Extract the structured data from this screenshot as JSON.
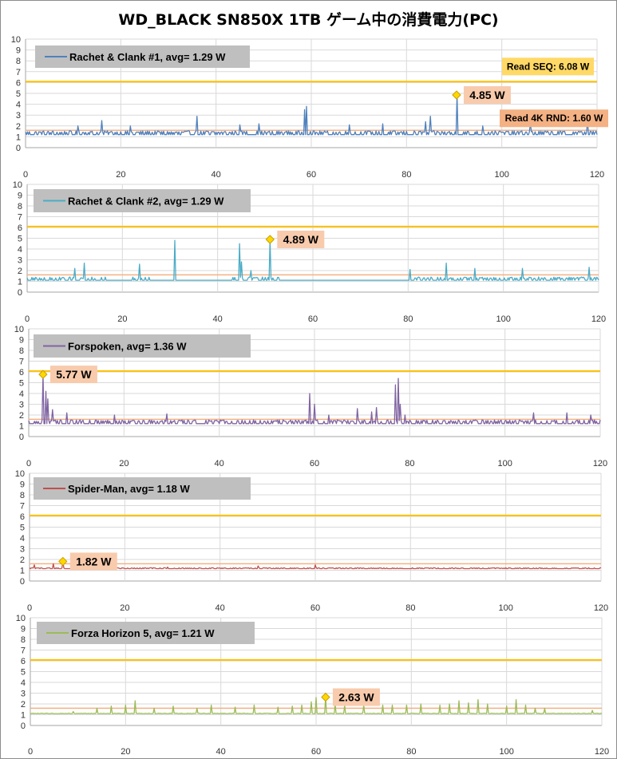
{
  "title": "WD_BLACK SN850X 1TB ゲーム中の消費電力(PC)",
  "colors": {
    "grid": "#d9d9d9",
    "axis": "#a6a6a6",
    "seq_line": "#ffc000",
    "rnd_line": "#f4b183",
    "legend_box": "#bfbfbf",
    "callout_box": "#f8cbad",
    "seq_box": "#ffd966",
    "rnd_box": "#f4b183",
    "marker_fill": "#ffd700",
    "marker_stroke": "#c9a000"
  },
  "reference_labels": {
    "seq": "Read SEQ:  6.08 W",
    "rnd": "Read 4K RND:  1.60 W"
  },
  "chart_data": [
    {
      "type": "line",
      "series": [
        {
          "name": "Rachet & Clank #1,  avg=  1.29 W",
          "color": "#4f81bd",
          "baseline": 1.2,
          "noise": 0.35,
          "spikes": [
            [
              11,
              2.0
            ],
            [
              16,
              2.5
            ],
            [
              22,
              2.0
            ],
            [
              36,
              2.9
            ],
            [
              45,
              2.1
            ],
            [
              49,
              2.2
            ],
            [
              58.5,
              3.5
            ],
            [
              59,
              3.8
            ],
            [
              68,
              2.1
            ],
            [
              75,
              2.2
            ],
            [
              84,
              2.4
            ],
            [
              85,
              2.9
            ],
            [
              90.5,
              4.85
            ],
            [
              96,
              2.0
            ],
            [
              106,
              2.3
            ],
            [
              118,
              2.6
            ]
          ],
          "peak": {
            "x": 90.5,
            "y": 4.85,
            "label": "4.85 W"
          }
        }
      ],
      "xlim": [
        0,
        120
      ],
      "ylim": [
        0,
        10
      ],
      "xticks": [
        0,
        20,
        40,
        60,
        80,
        100,
        120
      ],
      "yticks": [
        0,
        1,
        2,
        3,
        4,
        5,
        6,
        7,
        8,
        9,
        10
      ],
      "reference_lines": [
        6.08,
        1.6
      ],
      "show_reference_labels": true
    },
    {
      "type": "line",
      "series": [
        {
          "name": "Rachet & Clank #2,  avg=  1.29 W",
          "color": "#4bacc6",
          "baseline": 1.1,
          "noise": 0.3,
          "spikes": [
            [
              10,
              2.2
            ],
            [
              12,
              2.7
            ],
            [
              23.5,
              2.6
            ],
            [
              31,
              4.8
            ],
            [
              44.5,
              4.5
            ],
            [
              45,
              2.8
            ],
            [
              47,
              2.0
            ],
            [
              51,
              4.89
            ],
            [
              80.5,
              2.1
            ],
            [
              88,
              2.7
            ],
            [
              94,
              2.2
            ],
            [
              104,
              2.2
            ],
            [
              118,
              2.3
            ]
          ],
          "quiet": [
            [
              17,
              22
            ],
            [
              26,
              43
            ],
            [
              53,
              80
            ]
          ],
          "peak": {
            "x": 51,
            "y": 4.89,
            "label": "4.89 W"
          }
        }
      ],
      "xlim": [
        0,
        120
      ],
      "ylim": [
        0,
        10
      ],
      "xticks": [
        0,
        20,
        40,
        60,
        80,
        100,
        120
      ],
      "yticks": [
        0,
        1,
        2,
        3,
        4,
        5,
        6,
        7,
        8,
        9,
        10
      ],
      "reference_lines": [
        6.08,
        1.6
      ],
      "show_reference_labels": false
    },
    {
      "type": "line",
      "series": [
        {
          "name": "Forspoken,  avg=  1.36 W",
          "color": "#8064a2",
          "baseline": 1.2,
          "noise": 0.35,
          "spikes": [
            [
              3,
              5.77
            ],
            [
              3.5,
              4.2
            ],
            [
              4,
              3.5
            ],
            [
              5,
              2.5
            ],
            [
              8,
              2.2
            ],
            [
              18,
              2.0
            ],
            [
              29,
              2.1
            ],
            [
              59,
              4.0
            ],
            [
              60,
              3.0
            ],
            [
              63,
              2.0
            ],
            [
              69,
              2.6
            ],
            [
              72,
              2.3
            ],
            [
              73,
              2.7
            ],
            [
              77,
              4.8
            ],
            [
              77.5,
              5.4
            ],
            [
              78,
              3.0
            ],
            [
              79,
              2.0
            ],
            [
              106,
              2.2
            ],
            [
              113,
              2.2
            ],
            [
              118,
              2.0
            ]
          ],
          "peak": {
            "x": 3,
            "y": 5.77,
            "label": "5.77 W"
          }
        }
      ],
      "xlim": [
        0,
        120
      ],
      "ylim": [
        0,
        10
      ],
      "xticks": [
        0,
        20,
        40,
        60,
        80,
        100,
        120
      ],
      "yticks": [
        0,
        1,
        2,
        3,
        4,
        5,
        6,
        7,
        8,
        9,
        10
      ],
      "reference_lines": [
        6.08,
        1.6
      ],
      "show_reference_labels": false
    },
    {
      "type": "line",
      "series": [
        {
          "name": "Spider-Man,  avg=  1.18 W",
          "color": "#c0504d",
          "baseline": 1.15,
          "noise": 0.08,
          "spikes": [
            [
              1,
              1.5
            ],
            [
              5,
              1.6
            ],
            [
              7,
              1.82
            ],
            [
              18,
              1.4
            ],
            [
              29,
              1.3
            ],
            [
              48,
              1.4
            ],
            [
              60,
              1.5
            ]
          ],
          "peak": {
            "x": 7,
            "y": 1.82,
            "label": "1.82 W"
          }
        }
      ],
      "xlim": [
        0,
        120
      ],
      "ylim": [
        0,
        10
      ],
      "xticks": [
        0,
        20,
        40,
        60,
        80,
        100,
        120
      ],
      "yticks": [
        0,
        1,
        2,
        3,
        4,
        5,
        6,
        7,
        8,
        9,
        10
      ],
      "reference_lines": [
        6.08,
        1.6
      ],
      "show_reference_labels": false
    },
    {
      "type": "line",
      "series": [
        {
          "name": "Forza Horizon 5,  avg=  1.21 W",
          "color": "#9bbb59",
          "baseline": 1.1,
          "noise": 0.04,
          "spikes": [
            [
              9,
              1.3
            ],
            [
              14,
              1.6
            ],
            [
              17,
              1.8
            ],
            [
              20,
              1.9
            ],
            [
              22,
              2.3
            ],
            [
              26,
              1.6
            ],
            [
              30,
              1.8
            ],
            [
              35,
              1.6
            ],
            [
              38,
              1.9
            ],
            [
              43,
              1.7
            ],
            [
              47,
              1.9
            ],
            [
              52,
              1.7
            ],
            [
              55,
              1.8
            ],
            [
              57,
              1.9
            ],
            [
              59,
              2.2
            ],
            [
              60,
              2.6
            ],
            [
              62,
              2.63
            ],
            [
              64,
              2.0
            ],
            [
              66,
              1.9
            ],
            [
              70,
              1.9
            ],
            [
              74,
              1.9
            ],
            [
              76,
              1.9
            ],
            [
              79,
              1.9
            ],
            [
              82,
              2.0
            ],
            [
              86,
              1.9
            ],
            [
              88,
              2.0
            ],
            [
              90,
              2.3
            ],
            [
              92,
              2.1
            ],
            [
              94,
              2.4
            ],
            [
              96,
              2.0
            ],
            [
              100,
              1.8
            ],
            [
              102,
              2.4
            ],
            [
              104,
              1.9
            ],
            [
              106,
              1.6
            ],
            [
              108,
              1.6
            ],
            [
              118,
              1.4
            ]
          ],
          "peak": {
            "x": 62,
            "y": 2.63,
            "label": "2.63 W"
          }
        }
      ],
      "xlim": [
        0,
        120
      ],
      "ylim": [
        0,
        10
      ],
      "xticks": [
        0,
        20,
        40,
        60,
        80,
        100,
        120
      ],
      "yticks": [
        0,
        1,
        2,
        3,
        4,
        5,
        6,
        7,
        8,
        9,
        10
      ],
      "reference_lines": [
        6.08,
        1.6
      ],
      "show_reference_labels": false
    }
  ]
}
